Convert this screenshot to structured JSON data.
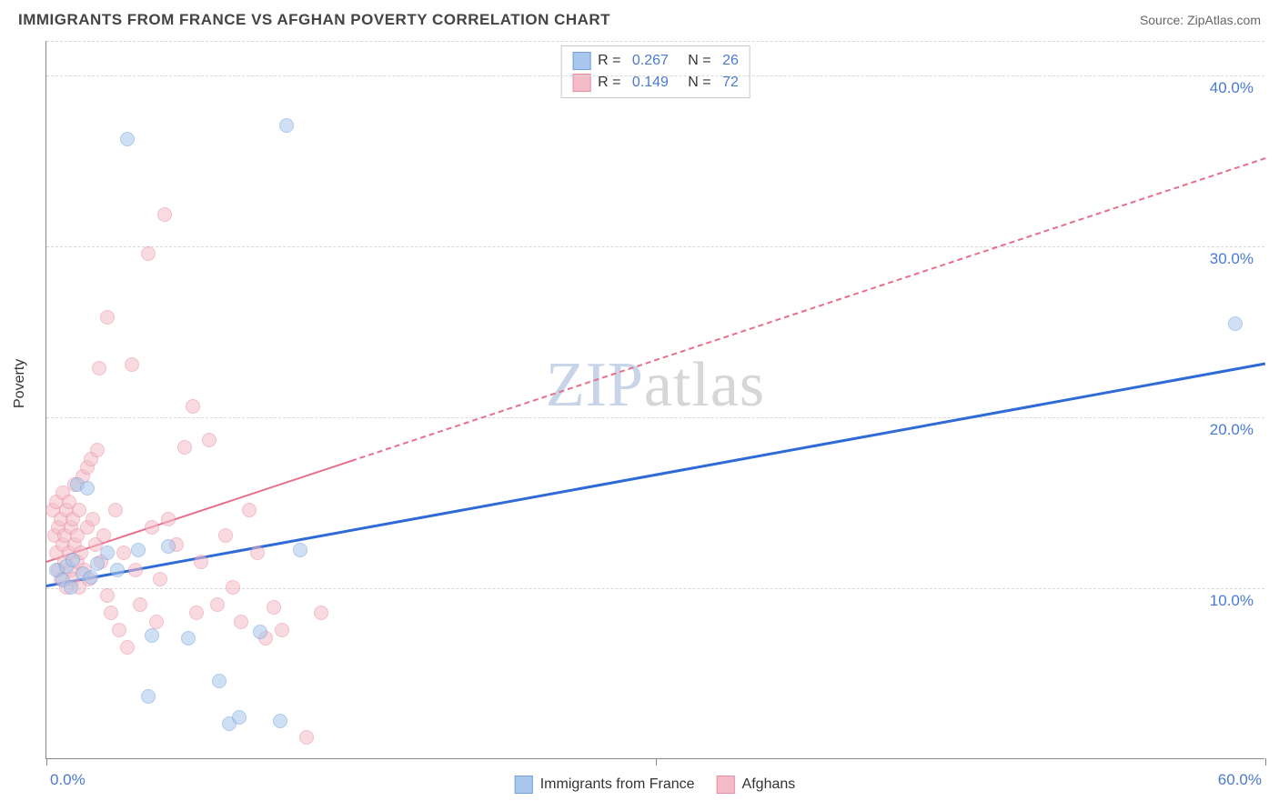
{
  "header": {
    "title": "IMMIGRANTS FROM FRANCE VS AFGHAN POVERTY CORRELATION CHART",
    "source_prefix": "Source: ",
    "source_name": "ZipAtlas.com"
  },
  "watermark": {
    "part1": "ZIP",
    "part2": "atlas"
  },
  "chart": {
    "type": "scatter",
    "y_axis_label": "Poverty",
    "xlim": [
      0,
      60
    ],
    "ylim": [
      0,
      42
    ],
    "x_ticks": [
      0,
      30,
      60
    ],
    "x_tick_labels": [
      "0.0%",
      "",
      "60.0%"
    ],
    "y_ticks": [
      10,
      20,
      30,
      40
    ],
    "y_tick_labels": [
      "10.0%",
      "20.0%",
      "30.0%",
      "40.0%"
    ],
    "grid_color": "#d8d8d8",
    "background_color": "#ffffff",
    "axis_color": "#888888",
    "tick_label_color": "#4a7bd0",
    "marker_radius": 8,
    "marker_opacity": 0.55,
    "series": [
      {
        "name": "Immigrants from France",
        "color_fill": "#a9c6ec",
        "color_stroke": "#6f9fdc",
        "R": "0.267",
        "N": "26",
        "trend": {
          "x1": 0,
          "y1": 10.2,
          "x2": 60,
          "y2": 23.2,
          "stroke": "#2e6bd6",
          "width": 3,
          "dash": "solid"
        },
        "points": [
          [
            0.5,
            11.0
          ],
          [
            0.8,
            10.4
          ],
          [
            1.0,
            11.2
          ],
          [
            1.2,
            10.0
          ],
          [
            1.3,
            11.6
          ],
          [
            1.5,
            16.0
          ],
          [
            1.8,
            10.8
          ],
          [
            2.0,
            15.8
          ],
          [
            2.2,
            10.6
          ],
          [
            2.5,
            11.4
          ],
          [
            3.0,
            12.0
          ],
          [
            3.5,
            11.0
          ],
          [
            4.0,
            36.2
          ],
          [
            4.5,
            12.2
          ],
          [
            5.0,
            3.6
          ],
          [
            5.2,
            7.2
          ],
          [
            6.0,
            12.4
          ],
          [
            7.0,
            7.0
          ],
          [
            8.5,
            4.5
          ],
          [
            9.0,
            2.0
          ],
          [
            9.5,
            2.4
          ],
          [
            10.5,
            7.4
          ],
          [
            11.5,
            2.2
          ],
          [
            11.8,
            37.0
          ],
          [
            12.5,
            12.2
          ],
          [
            58.5,
            25.4
          ]
        ]
      },
      {
        "name": "Afghans",
        "color_fill": "#f4bcc8",
        "color_stroke": "#e98ba0",
        "R": "0.149",
        "N": "72",
        "trend": {
          "x1": 0,
          "y1": 11.6,
          "x2": 60,
          "y2": 35.2,
          "stroke": "#e86f8c",
          "width": 2.5,
          "dash": "dashed",
          "solid_until_x": 15
        },
        "points": [
          [
            0.3,
            14.5
          ],
          [
            0.4,
            13.0
          ],
          [
            0.5,
            12.0
          ],
          [
            0.5,
            15.0
          ],
          [
            0.6,
            11.0
          ],
          [
            0.6,
            13.5
          ],
          [
            0.7,
            10.5
          ],
          [
            0.7,
            14.0
          ],
          [
            0.8,
            12.5
          ],
          [
            0.8,
            15.5
          ],
          [
            0.9,
            11.5
          ],
          [
            0.9,
            13.0
          ],
          [
            1.0,
            10.0
          ],
          [
            1.0,
            14.5
          ],
          [
            1.1,
            12.0
          ],
          [
            1.1,
            15.0
          ],
          [
            1.2,
            11.0
          ],
          [
            1.2,
            13.5
          ],
          [
            1.3,
            10.5
          ],
          [
            1.3,
            14.0
          ],
          [
            1.4,
            12.5
          ],
          [
            1.4,
            16.0
          ],
          [
            1.5,
            11.5
          ],
          [
            1.5,
            13.0
          ],
          [
            1.6,
            10.0
          ],
          [
            1.6,
            14.5
          ],
          [
            1.7,
            12.0
          ],
          [
            1.8,
            16.5
          ],
          [
            1.9,
            11.0
          ],
          [
            2.0,
            17.0
          ],
          [
            2.0,
            13.5
          ],
          [
            2.1,
            10.5
          ],
          [
            2.2,
            17.5
          ],
          [
            2.3,
            14.0
          ],
          [
            2.4,
            12.5
          ],
          [
            2.5,
            18.0
          ],
          [
            2.6,
            22.8
          ],
          [
            2.7,
            11.5
          ],
          [
            2.8,
            13.0
          ],
          [
            3.0,
            9.5
          ],
          [
            3.0,
            25.8
          ],
          [
            3.2,
            8.5
          ],
          [
            3.4,
            14.5
          ],
          [
            3.6,
            7.5
          ],
          [
            3.8,
            12.0
          ],
          [
            4.0,
            6.5
          ],
          [
            4.2,
            23.0
          ],
          [
            4.4,
            11.0
          ],
          [
            4.6,
            9.0
          ],
          [
            5.0,
            29.5
          ],
          [
            5.2,
            13.5
          ],
          [
            5.4,
            8.0
          ],
          [
            5.6,
            10.5
          ],
          [
            5.8,
            31.8
          ],
          [
            6.0,
            14.0
          ],
          [
            6.4,
            12.5
          ],
          [
            6.8,
            18.2
          ],
          [
            7.2,
            20.6
          ],
          [
            7.4,
            8.5
          ],
          [
            7.6,
            11.5
          ],
          [
            8.0,
            18.6
          ],
          [
            8.4,
            9.0
          ],
          [
            8.8,
            13.0
          ],
          [
            9.2,
            10.0
          ],
          [
            9.6,
            8.0
          ],
          [
            10.0,
            14.5
          ],
          [
            10.4,
            12.0
          ],
          [
            10.8,
            7.0
          ],
          [
            11.2,
            8.8
          ],
          [
            11.6,
            7.5
          ],
          [
            12.8,
            1.2
          ],
          [
            13.5,
            8.5
          ]
        ]
      }
    ]
  },
  "legend_top": {
    "rows": [
      {
        "swatch_fill": "#a9c6ec",
        "swatch_stroke": "#6f9fdc",
        "r_label": "R = ",
        "r_value": "0.267",
        "n_label": "   N = ",
        "n_value": "26"
      },
      {
        "swatch_fill": "#f4bcc8",
        "swatch_stroke": "#e98ba0",
        "r_label": "R = ",
        "r_value": "0.149",
        "n_label": "   N = ",
        "n_value": "72"
      }
    ]
  },
  "legend_bottom": {
    "items": [
      {
        "swatch_fill": "#a9c6ec",
        "swatch_stroke": "#6f9fdc",
        "label": "Immigrants from France"
      },
      {
        "swatch_fill": "#f4bcc8",
        "swatch_stroke": "#e98ba0",
        "label": "Afghans"
      }
    ]
  }
}
